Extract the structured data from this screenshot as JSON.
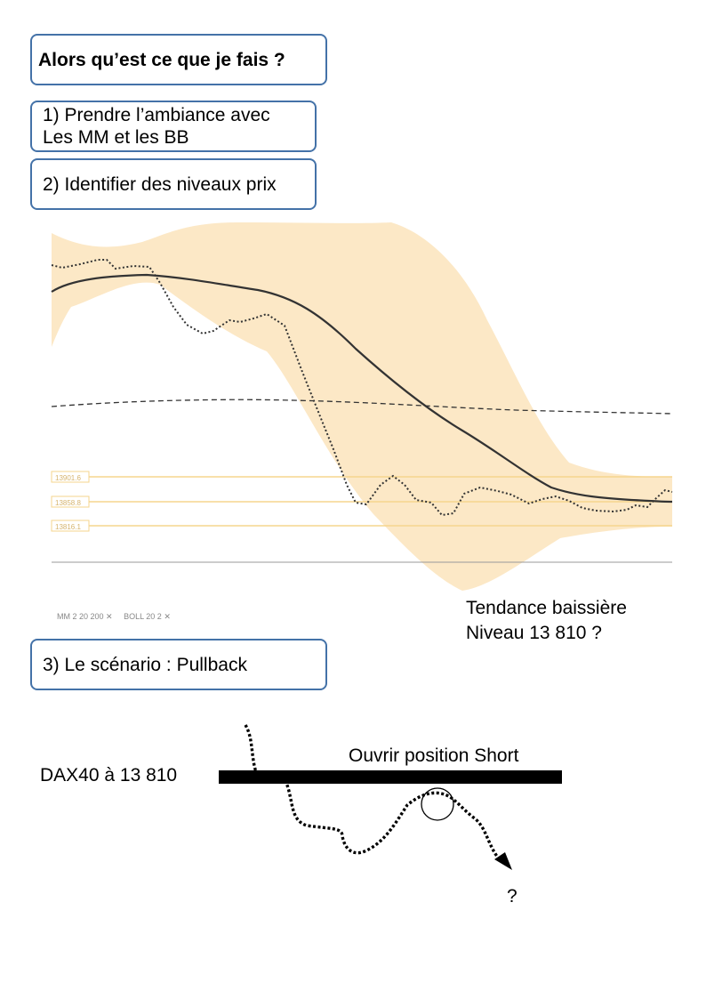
{
  "header": {
    "title": "Alors qu’est ce que je fais ?"
  },
  "steps": [
    {
      "line1": "1) Prendre l’ambiance avec",
      "line2": "Les MM et les BB"
    },
    {
      "line1": "2) Identifier des niveaux prix"
    },
    {
      "line1": "3) Le scénario : Pullback"
    }
  ],
  "chart": {
    "levels": [
      {
        "label": "13901.6",
        "value": 13901.6
      },
      {
        "label": "13858.8",
        "value": 13858.8
      },
      {
        "label": "13816.1",
        "value": 13816.1
      }
    ],
    "indicator_legend": {
      "mm": "MM  2  20  200",
      "boll": "BOLL  20  2",
      "close_glyph": "✕"
    },
    "colors": {
      "band": "#fce8c6",
      "level_line": "#f5d58e",
      "ma": "#333333"
    }
  },
  "annotation": {
    "trend_line1": "Tendance baissière",
    "trend_line2": "Niveau 13 810 ?"
  },
  "scenario": {
    "price_label": "DAX40 à 13 810",
    "action_label": "Ouvrir position Short",
    "outcome": "?"
  }
}
